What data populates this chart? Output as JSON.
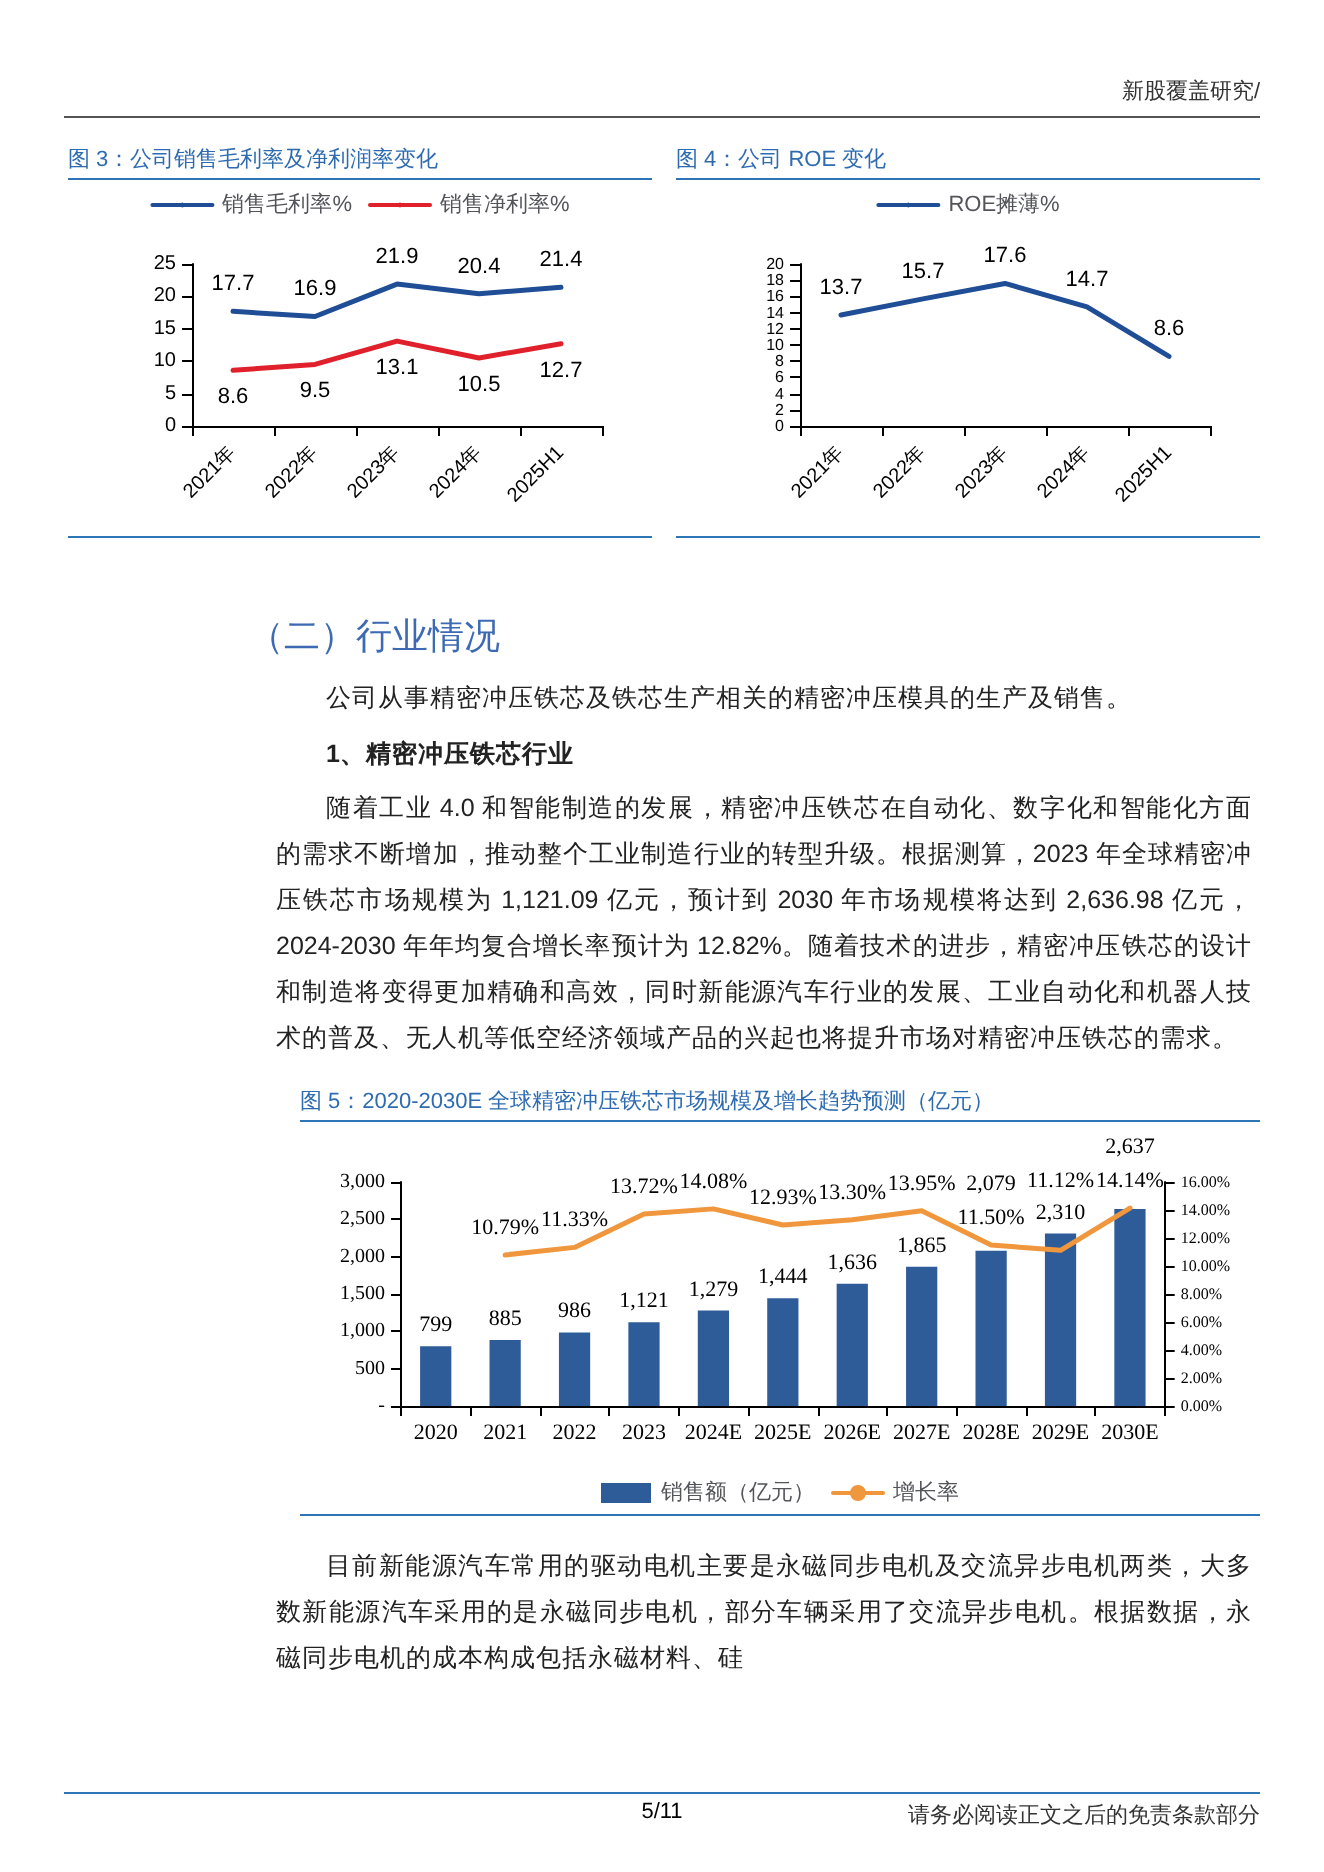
{
  "chart_data": [
    {
      "type": "other",
      "annotations": [
        "新股覆盖研究/"
      ]
    },
    {
      "type": "line",
      "title": "图 3：公司销售毛利率及净利润率变化",
      "categories": [
        "2021年",
        "2022年",
        "2023年",
        "2024年",
        "2025H1"
      ],
      "series": [
        {
          "name": "销售毛利率%",
          "color": "#1f4e96",
          "values": [
            17.7,
            16.9,
            21.9,
            20.4,
            21.4
          ]
        },
        {
          "name": "销售净利率%",
          "color": "#e0202a",
          "values": [
            8.6,
            9.5,
            13.1,
            10.5,
            12.7
          ]
        }
      ],
      "ylim": [
        0,
        25
      ],
      "yticks": [
        0,
        5,
        10,
        15,
        20,
        25
      ],
      "data_labels": true,
      "legend": "top",
      "grid": false,
      "marker": "none",
      "line_style": "solid"
    },
    {
      "type": "line",
      "title": "图 4：公司 ROE 变化",
      "categories": [
        "2021年",
        "2022年",
        "2023年",
        "2024年",
        "2025H1"
      ],
      "series": [
        {
          "name": "ROE摊薄%",
          "color": "#1f4e96",
          "values": [
            13.7,
            15.7,
            17.6,
            14.7,
            8.6
          ]
        }
      ],
      "ylim": [
        0,
        20
      ],
      "yticks": [
        0,
        2,
        4,
        6,
        8,
        10,
        12,
        14,
        16,
        18,
        20
      ],
      "data_labels": true,
      "legend": "top",
      "grid": false,
      "marker": "none",
      "line_style": "solid"
    },
    {
      "type": "other",
      "annotations": [
        "（二）行业情况",
        "公司从事精密冲压铁芯及铁芯生产相关的精密冲压模具的生产及销售。",
        "1、精密冲压铁芯行业",
        "随着工业 4.0 和智能制造的发展，精密冲压铁芯在自动化、数字化和智能化方面的需求不断增加，推动整个工业制造行业的转型升级。根据测算，2023 年全球精密冲压铁芯市场规模为 1,121.09 亿元，预计到 2030 年市场规模将达到 2,636.98 亿元，2024-2030 年年均复合增长率预计为 12.82%。随着技术的进步，精密冲压铁芯的设计和制造将变得更加精确和高效，同时新能源汽车行业的发展、工业自动化和机器人技术的普及、无人机等低空经济领域产品的兴起也将提升市场对精密冲压铁芯的需求。"
      ]
    },
    {
      "type": "bar",
      "title": "图 5：2020-2030E 全球精密冲压铁芯市场规模及增长趋势预测（亿元）",
      "categories": [
        "2020",
        "2021",
        "2022",
        "2023",
        "2024E",
        "2025E",
        "2026E",
        "2027E",
        "2028E",
        "2029E",
        "2030E"
      ],
      "series": [
        {
          "name": "销售额（亿元）",
          "color": "#2e5c99",
          "values": [
            799,
            885,
            986,
            1121,
            1279,
            1444,
            1636,
            1865,
            2079,
            2310,
            2637
          ],
          "value_labels": [
            "799",
            "885",
            "986",
            "1,121",
            "1,279",
            "1,444",
            "1,636",
            "1,865",
            "2,079",
            "2,310",
            "2,637"
          ]
        },
        {
          "name": "增长率",
          "type": "line",
          "axis": "y2",
          "color": "#f0963c",
          "values": [
            null,
            10.79,
            11.33,
            13.72,
            14.08,
            12.93,
            13.3,
            13.95,
            11.5,
            11.12,
            14.14
          ],
          "value_labels": [
            null,
            "10.79%",
            "11.33%",
            "13.72%",
            "14.08%",
            "12.93%",
            "13.30%",
            "13.95%",
            "11.50%",
            "11.12%",
            "14.14%"
          ]
        }
      ],
      "ylim": [
        0,
        3000
      ],
      "yticks": [
        {
          "value": 0,
          "label": "-"
        },
        500,
        {
          "value": 1000,
          "label": "1,000"
        },
        {
          "value": 1500,
          "label": "1,500"
        },
        {
          "value": 2000,
          "label": "2,000"
        },
        {
          "value": 2500,
          "label": "2,500"
        },
        {
          "value": 3000,
          "label": "3,000"
        }
      ],
      "y2lim": [
        0,
        16
      ],
      "y2ticks": [
        {
          "value": 0,
          "label": "0.00%"
        },
        {
          "value": 2,
          "label": "2.00%"
        },
        {
          "value": 4,
          "label": "4.00%"
        },
        {
          "value": 6,
          "label": "6.00%"
        },
        {
          "value": 8,
          "label": "8.00%"
        },
        {
          "value": 10,
          "label": "10.00%"
        },
        {
          "value": 12,
          "label": "12.00%"
        },
        {
          "value": 14,
          "label": "14.00%"
        },
        {
          "value": 16,
          "label": "16.00%"
        }
      ],
      "legend": "bottom",
      "grid": false,
      "marker": "none"
    },
    {
      "type": "other",
      "annotations": [
        "目前新能源汽车常用的驱动电机主要是永磁同步电机及交流异步电机两类，大多数新能源汽车采用的是永磁同步电机，部分车辆采用了交流异步电机。根据数据，永磁同步电机的成本构成包括永磁材料、硅",
        "5/11",
        "请务必阅读正文之后的免责条款部分"
      ]
    }
  ]
}
